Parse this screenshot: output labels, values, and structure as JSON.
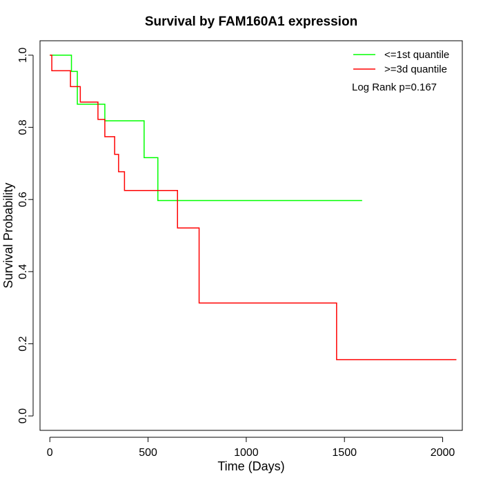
{
  "chart_data": {
    "type": "line",
    "title": "Survival by FAM160A1 expression",
    "xlabel": "Time (Days)",
    "ylabel": "Survival Probability",
    "xlim": [
      -50,
      2100
    ],
    "ylim": [
      -0.04,
      1.04
    ],
    "xticks": [
      0,
      500,
      1000,
      1500,
      2000
    ],
    "xtick_labels": [
      "0",
      "500",
      "1000",
      "1500",
      "2000"
    ],
    "yticks": [
      0.0,
      0.2,
      0.4,
      0.6,
      0.8,
      1.0
    ],
    "ytick_labels": [
      "0.0",
      "0.2",
      "0.4",
      "0.6",
      "0.8",
      "1.0"
    ],
    "grid": false,
    "legend_position": "top-right",
    "annotation": "Log Rank p=0.167",
    "series": [
      {
        "name": "<=1st quantile",
        "color": "#00ff00",
        "steps": [
          [
            0,
            1.0
          ],
          [
            110,
            0.955
          ],
          [
            140,
            0.864
          ],
          [
            280,
            0.818
          ],
          [
            480,
            0.716
          ],
          [
            550,
            0.597
          ],
          [
            1590,
            0.597
          ]
        ]
      },
      {
        "name": ">=3d quantile",
        "color": "#ff0000",
        "steps": [
          [
            0,
            1.0
          ],
          [
            10,
            0.957
          ],
          [
            105,
            0.913
          ],
          [
            155,
            0.87
          ],
          [
            245,
            0.822
          ],
          [
            280,
            0.774
          ],
          [
            330,
            0.725
          ],
          [
            350,
            0.677
          ],
          [
            380,
            0.625
          ],
          [
            650,
            0.521
          ],
          [
            760,
            0.313
          ],
          [
            1460,
            0.156
          ],
          [
            2070,
            0.156
          ]
        ]
      }
    ]
  }
}
